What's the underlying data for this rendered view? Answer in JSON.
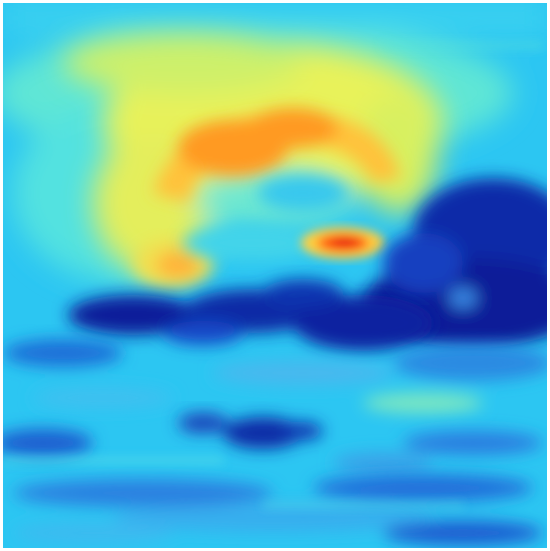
{
  "image": {
    "kind": "jet-colormap-heatmap",
    "colormap": [
      "#00008f",
      "#0000ff",
      "#0080ff",
      "#00ffff",
      "#80ff80",
      "#ffff00",
      "#ff8000",
      "#ff0000"
    ],
    "background_color": "#30c8f0",
    "dark_band_color": "#0a1d9c",
    "hotspot_color": "#ff3a10"
  }
}
